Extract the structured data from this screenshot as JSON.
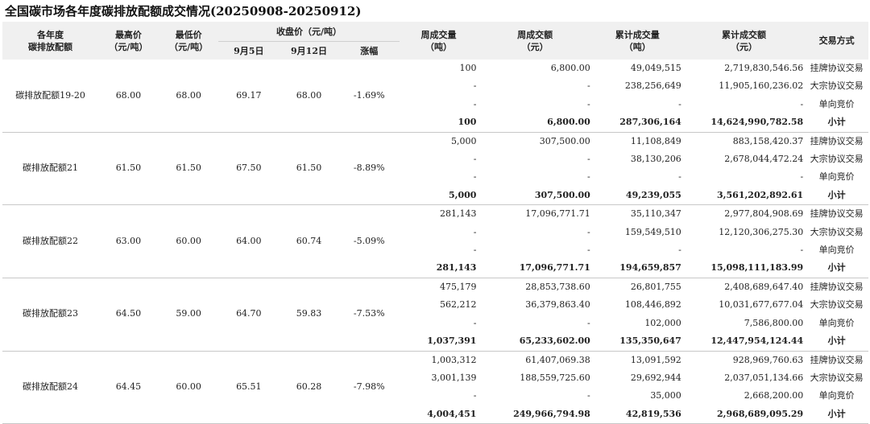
{
  "title": "全国碳市场各年度碳排放配额成交情况(20250908-20250912)",
  "headers": {
    "vintage_l1": "各年度",
    "vintage_l2": "碳排放配额",
    "high_l1": "最高价",
    "high_l2": "（元/吨）",
    "low_l1": "最低价",
    "low_l2": "（元/吨）",
    "close": "收盘价（元/吨）",
    "close_d1": "9月5日",
    "close_d2": "9月12日",
    "change": "涨幅",
    "week_vol_l1": "周成交量",
    "week_vol_l2": "（吨）",
    "week_amt_l1": "周成交额",
    "week_amt_l2": "（元）",
    "cum_vol_l1": "累计成交量",
    "cum_vol_l2": "（吨）",
    "cum_amt_l1": "累计成交额",
    "cum_amt_l2": "（元）",
    "method": "交易方式"
  },
  "groups": [
    {
      "name": "碳排放配额19-20",
      "high": "68.00",
      "low": "68.00",
      "close_d1": "69.17",
      "close_d2": "68.00",
      "change": "-1.69%",
      "rows": [
        {
          "week_vol": "100",
          "week_amt": "6,800.00",
          "cum_vol": "49,049,515",
          "cum_amt": "2,719,830,546.56",
          "method": "挂牌协议交易"
        },
        {
          "week_vol": "-",
          "week_amt": "-",
          "cum_vol": "238,256,649",
          "cum_amt": "11,905,160,236.02",
          "method": "大宗协议交易"
        },
        {
          "week_vol": "-",
          "week_amt": "-",
          "cum_vol": "-",
          "cum_amt": "-",
          "method": "单向竞价"
        },
        {
          "week_vol": "100",
          "week_amt": "6,800.00",
          "cum_vol": "287,306,164",
          "cum_amt": "14,624,990,782.58",
          "method": "小计"
        }
      ]
    },
    {
      "name": "碳排放配额21",
      "high": "61.50",
      "low": "61.50",
      "close_d1": "67.50",
      "close_d2": "61.50",
      "change": "-8.89%",
      "rows": [
        {
          "week_vol": "5,000",
          "week_amt": "307,500.00",
          "cum_vol": "11,108,849",
          "cum_amt": "883,158,420.37",
          "method": "挂牌协议交易"
        },
        {
          "week_vol": "-",
          "week_amt": "-",
          "cum_vol": "38,130,206",
          "cum_amt": "2,678,044,472.24",
          "method": "大宗协议交易"
        },
        {
          "week_vol": "-",
          "week_amt": "-",
          "cum_vol": "-",
          "cum_amt": "-",
          "method": "单向竞价"
        },
        {
          "week_vol": "5,000",
          "week_amt": "307,500.00",
          "cum_vol": "49,239,055",
          "cum_amt": "3,561,202,892.61",
          "method": "小计"
        }
      ]
    },
    {
      "name": "碳排放配额22",
      "high": "63.00",
      "low": "60.00",
      "close_d1": "64.00",
      "close_d2": "60.74",
      "change": "-5.09%",
      "rows": [
        {
          "week_vol": "281,143",
          "week_amt": "17,096,771.71",
          "cum_vol": "35,110,347",
          "cum_amt": "2,977,804,908.69",
          "method": "挂牌协议交易"
        },
        {
          "week_vol": "-",
          "week_amt": "-",
          "cum_vol": "159,549,510",
          "cum_amt": "12,120,306,275.30",
          "method": "大宗协议交易"
        },
        {
          "week_vol": "-",
          "week_amt": "-",
          "cum_vol": "-",
          "cum_amt": "-",
          "method": "单向竞价"
        },
        {
          "week_vol": "281,143",
          "week_amt": "17,096,771.71",
          "cum_vol": "194,659,857",
          "cum_amt": "15,098,111,183.99",
          "method": "小计"
        }
      ]
    },
    {
      "name": "碳排放配额23",
      "high": "64.50",
      "low": "59.00",
      "close_d1": "64.70",
      "close_d2": "59.83",
      "change": "-7.53%",
      "rows": [
        {
          "week_vol": "475,179",
          "week_amt": "28,853,738.60",
          "cum_vol": "26,801,755",
          "cum_amt": "2,408,689,647.40",
          "method": "挂牌协议交易"
        },
        {
          "week_vol": "562,212",
          "week_amt": "36,379,863.40",
          "cum_vol": "108,446,892",
          "cum_amt": "10,031,677,677.04",
          "method": "大宗协议交易"
        },
        {
          "week_vol": "-",
          "week_amt": "-",
          "cum_vol": "102,000",
          "cum_amt": "7,586,800.00",
          "method": "单向竞价"
        },
        {
          "week_vol": "1,037,391",
          "week_amt": "65,233,602.00",
          "cum_vol": "135,350,647",
          "cum_amt": "12,447,954,124.44",
          "method": "小计"
        }
      ]
    },
    {
      "name": "碳排放配额24",
      "high": "64.45",
      "low": "60.00",
      "close_d1": "65.51",
      "close_d2": "60.28",
      "change": "-7.98%",
      "rows": [
        {
          "week_vol": "1,003,312",
          "week_amt": "61,407,069.38",
          "cum_vol": "13,091,592",
          "cum_amt": "928,969,760.63",
          "method": "挂牌协议交易"
        },
        {
          "week_vol": "3,001,139",
          "week_amt": "188,559,725.60",
          "cum_vol": "29,692,944",
          "cum_amt": "2,037,051,134.66",
          "method": "大宗协议交易"
        },
        {
          "week_vol": "-",
          "week_amt": "-",
          "cum_vol": "35,000",
          "cum_amt": "2,668,200.00",
          "method": "单向竞价"
        },
        {
          "week_vol": "4,004,451",
          "week_amt": "249,966,794.98",
          "cum_vol": "42,819,536",
          "cum_amt": "2,968,689,095.29",
          "method": "小计"
        }
      ]
    }
  ]
}
